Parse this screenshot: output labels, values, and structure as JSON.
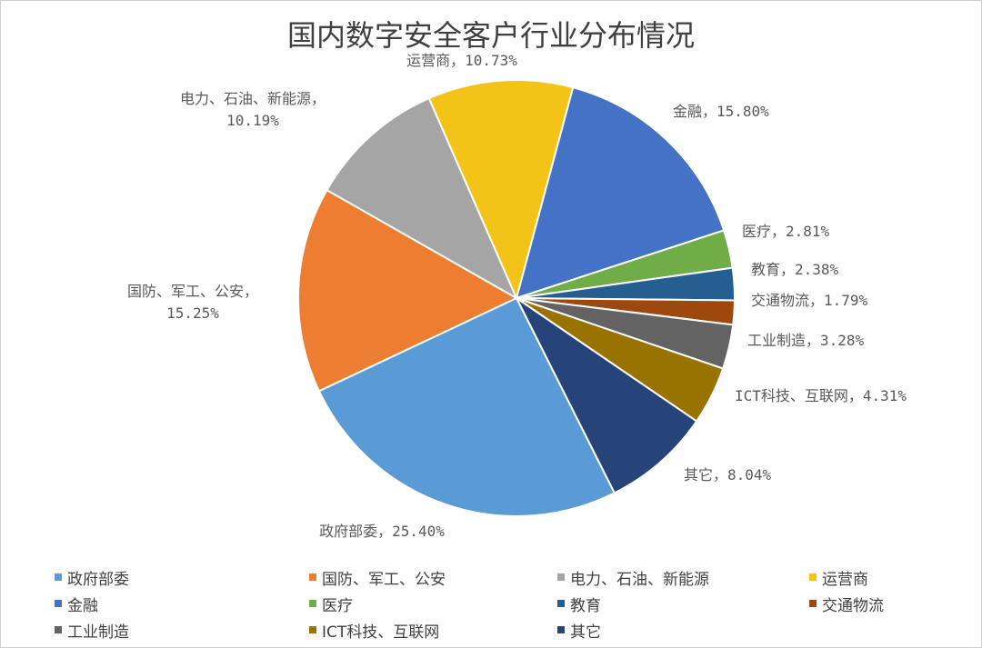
{
  "chart_data": {
    "type": "pie",
    "title": "国内数字安全客户行业分布情况",
    "slices": [
      {
        "name": "金融",
        "value": 15.8,
        "label": "金融，15.80%",
        "color": "#4472C4"
      },
      {
        "name": "医疗",
        "value": 2.81,
        "label": "医疗，2.81%",
        "color": "#70AD47"
      },
      {
        "name": "教育",
        "value": 2.38,
        "label": "教育，2.38%",
        "color": "#255E91"
      },
      {
        "name": "交通物流",
        "value": 1.79,
        "label": "交通物流，1.79%",
        "color": "#9E480E"
      },
      {
        "name": "工业制造",
        "value": 3.28,
        "label": "工业制造，3.28%",
        "color": "#636363"
      },
      {
        "name": "ICT科技、互联网",
        "value": 4.31,
        "label": "ICT科技、互联网，4.31%",
        "color": "#997300"
      },
      {
        "name": "其它",
        "value": 8.04,
        "label": "其它，8.04%",
        "color": "#264478"
      },
      {
        "name": "政府部委",
        "value": 25.4,
        "label": "政府部委，25.40%",
        "color": "#5B9BD5"
      },
      {
        "name": "国防、军工、公安",
        "value": 15.25,
        "label": "国防、军工、公安，",
        "label2": "15.25%",
        "color": "#ED7D31"
      },
      {
        "name": "电力、石油、新能源",
        "value": 10.19,
        "label": "电力、石油、新能源，",
        "label2": "10.19%",
        "color": "#A5A5A5"
      },
      {
        "name": "运营商",
        "value": 10.73,
        "label": "运营商，10.73%",
        "color": "#F4C317"
      }
    ],
    "legend_placement": "bottom",
    "legend": [
      {
        "name": "政府部委",
        "color": "#5B9BD5"
      },
      {
        "name": "国防、军工、公安",
        "color": "#ED7D31"
      },
      {
        "name": "电力、石油、新能源",
        "color": "#A5A5A5"
      },
      {
        "name": "运营商",
        "color": "#F4C317"
      },
      {
        "name": "金融",
        "color": "#4472C4"
      },
      {
        "name": "医疗",
        "color": "#70AD47"
      },
      {
        "name": "教育",
        "color": "#255E91"
      },
      {
        "name": "交通物流",
        "color": "#9E480E"
      },
      {
        "name": "工业制造",
        "color": "#636363"
      },
      {
        "name": "ICT科技、互联网",
        "color": "#997300"
      },
      {
        "name": "其它",
        "color": "#264478"
      }
    ]
  }
}
